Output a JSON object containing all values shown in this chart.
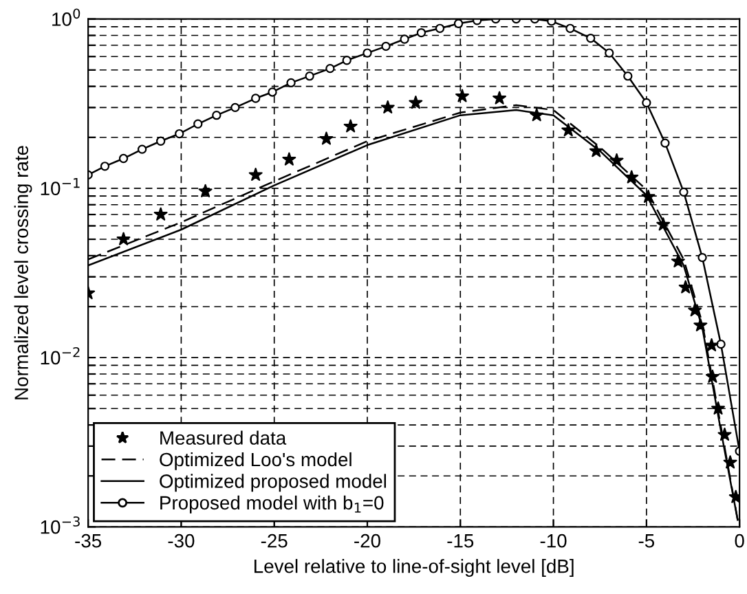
{
  "chart_data": {
    "type": "line",
    "xlabel": "Level relative to line-of-sight level [dB]",
    "ylabel": "Normalized level crossing rate",
    "log": "y",
    "grid": true,
    "legend": "bottom left",
    "xlim": [
      -35,
      0
    ],
    "xticks": [
      -35,
      -30,
      -25,
      -20,
      -15,
      -10,
      -5,
      0
    ],
    "ylim": [
      0.001,
      1
    ],
    "yticks": [
      {
        "value": 0.001,
        "label": "10$^{−3}$"
      },
      {
        "value": 0.002,
        "label": null
      },
      {
        "value": 0.003,
        "label": null
      },
      {
        "value": 0.004,
        "label": null
      },
      {
        "value": 0.005,
        "label": null
      },
      {
        "value": 0.006,
        "label": null
      },
      {
        "value": 0.007,
        "label": null
      },
      {
        "value": 0.008,
        "label": null
      },
      {
        "value": 0.009,
        "label": null
      },
      {
        "value": 0.01,
        "label": "10$^{−2}$"
      },
      {
        "value": 0.02,
        "label": null
      },
      {
        "value": 0.03,
        "label": null
      },
      {
        "value": 0.04,
        "label": null
      },
      {
        "value": 0.05,
        "label": null
      },
      {
        "value": 0.06,
        "label": null
      },
      {
        "value": 0.07,
        "label": null
      },
      {
        "value": 0.08,
        "label": null
      },
      {
        "value": 0.09,
        "label": null
      },
      {
        "value": 0.1,
        "label": "10$^{−1}$"
      },
      {
        "value": 0.2,
        "label": null
      },
      {
        "value": 0.3,
        "label": null
      },
      {
        "value": 0.4,
        "label": null
      },
      {
        "value": 0.5,
        "label": null
      },
      {
        "value": 0.6,
        "label": null
      },
      {
        "value": 0.7,
        "label": null
      },
      {
        "value": 0.8,
        "label": null
      },
      {
        "value": 0.9,
        "label": null
      },
      {
        "value": 1,
        "label": "10$^{0}$"
      }
    ],
    "series": [
      {
        "name": "Measured data",
        "type": "scatter",
        "marker": "star",
        "color": "#000000",
        "x": [
          -35,
          -33.1,
          -31.1,
          -28.7,
          -26.0,
          -24.2,
          -22.2,
          -20.9,
          -18.9,
          -17.4,
          -14.9,
          -12.9,
          -10.9,
          -9.2,
          -7.7,
          -6.6,
          -5.8,
          -4.9,
          -4.1,
          -3.3,
          -2.9,
          -2.4,
          -2.1,
          -1.5,
          -1.45,
          -1.15,
          -0.8,
          -0.5,
          -0.2
        ],
        "values": [
          0.024,
          0.05,
          0.07,
          0.096,
          0.12,
          0.148,
          0.196,
          0.232,
          0.3,
          0.32,
          0.35,
          0.34,
          0.27,
          0.22,
          0.166,
          0.146,
          0.116,
          0.089,
          0.061,
          0.037,
          0.026,
          0.019,
          0.0155,
          0.0118,
          0.0077,
          0.005,
          0.0035,
          0.0024,
          0.0015
        ]
      },
      {
        "name": "Optimized Loo's model",
        "line_style": "dashed",
        "marker": "none",
        "color": "#000000",
        "x": [
          -35,
          -30,
          -25,
          -20,
          -15,
          -12,
          -10,
          -7.5,
          -5,
          -3,
          -2,
          -1,
          -0.1
        ],
        "values": [
          0.038,
          0.063,
          0.11,
          0.19,
          0.28,
          0.31,
          0.29,
          0.175,
          0.098,
          0.038,
          0.016,
          0.0039,
          0.0011
        ]
      },
      {
        "name": "Optimized proposed model",
        "line_style": "solid",
        "marker": "none",
        "color": "#000000",
        "x": [
          -35,
          -30,
          -25,
          -20,
          -15,
          -12,
          -10,
          -7.5,
          -5,
          -3,
          -2,
          -1,
          -0.1
        ],
        "values": [
          0.035,
          0.057,
          0.104,
          0.18,
          0.27,
          0.29,
          0.27,
          0.166,
          0.091,
          0.035,
          0.015,
          0.0037,
          0.0011
        ]
      },
      {
        "name": "Proposed model with b$_{1}$=0",
        "line_style": "solid",
        "marker": "circle",
        "color": "#000000",
        "x": [
          -35,
          -34.1,
          -33.1,
          -32.1,
          -31.1,
          -30.1,
          -29.1,
          -28.1,
          -27.1,
          -26.0,
          -25.1,
          -24.1,
          -23.1,
          -22.0,
          -21.1,
          -20.0,
          -19.0,
          -18.0,
          -17.1,
          -16.1,
          -15.1,
          -14.1,
          -13.1,
          -12.0,
          -11.0,
          -10.1,
          -9.1,
          -8.0,
          -7.0,
          -6.0,
          -5.0,
          -4.0,
          -3.0,
          -2.0,
          -1.0,
          0
        ],
        "values": [
          0.12,
          0.135,
          0.15,
          0.17,
          0.19,
          0.21,
          0.24,
          0.27,
          0.3,
          0.34,
          0.37,
          0.42,
          0.46,
          0.51,
          0.57,
          0.63,
          0.69,
          0.76,
          0.83,
          0.88,
          0.94,
          0.98,
          1.0,
          1.0,
          1.0,
          0.97,
          0.88,
          0.77,
          0.63,
          0.46,
          0.32,
          0.185,
          0.095,
          0.039,
          0.012,
          0.0028
        ]
      }
    ]
  }
}
